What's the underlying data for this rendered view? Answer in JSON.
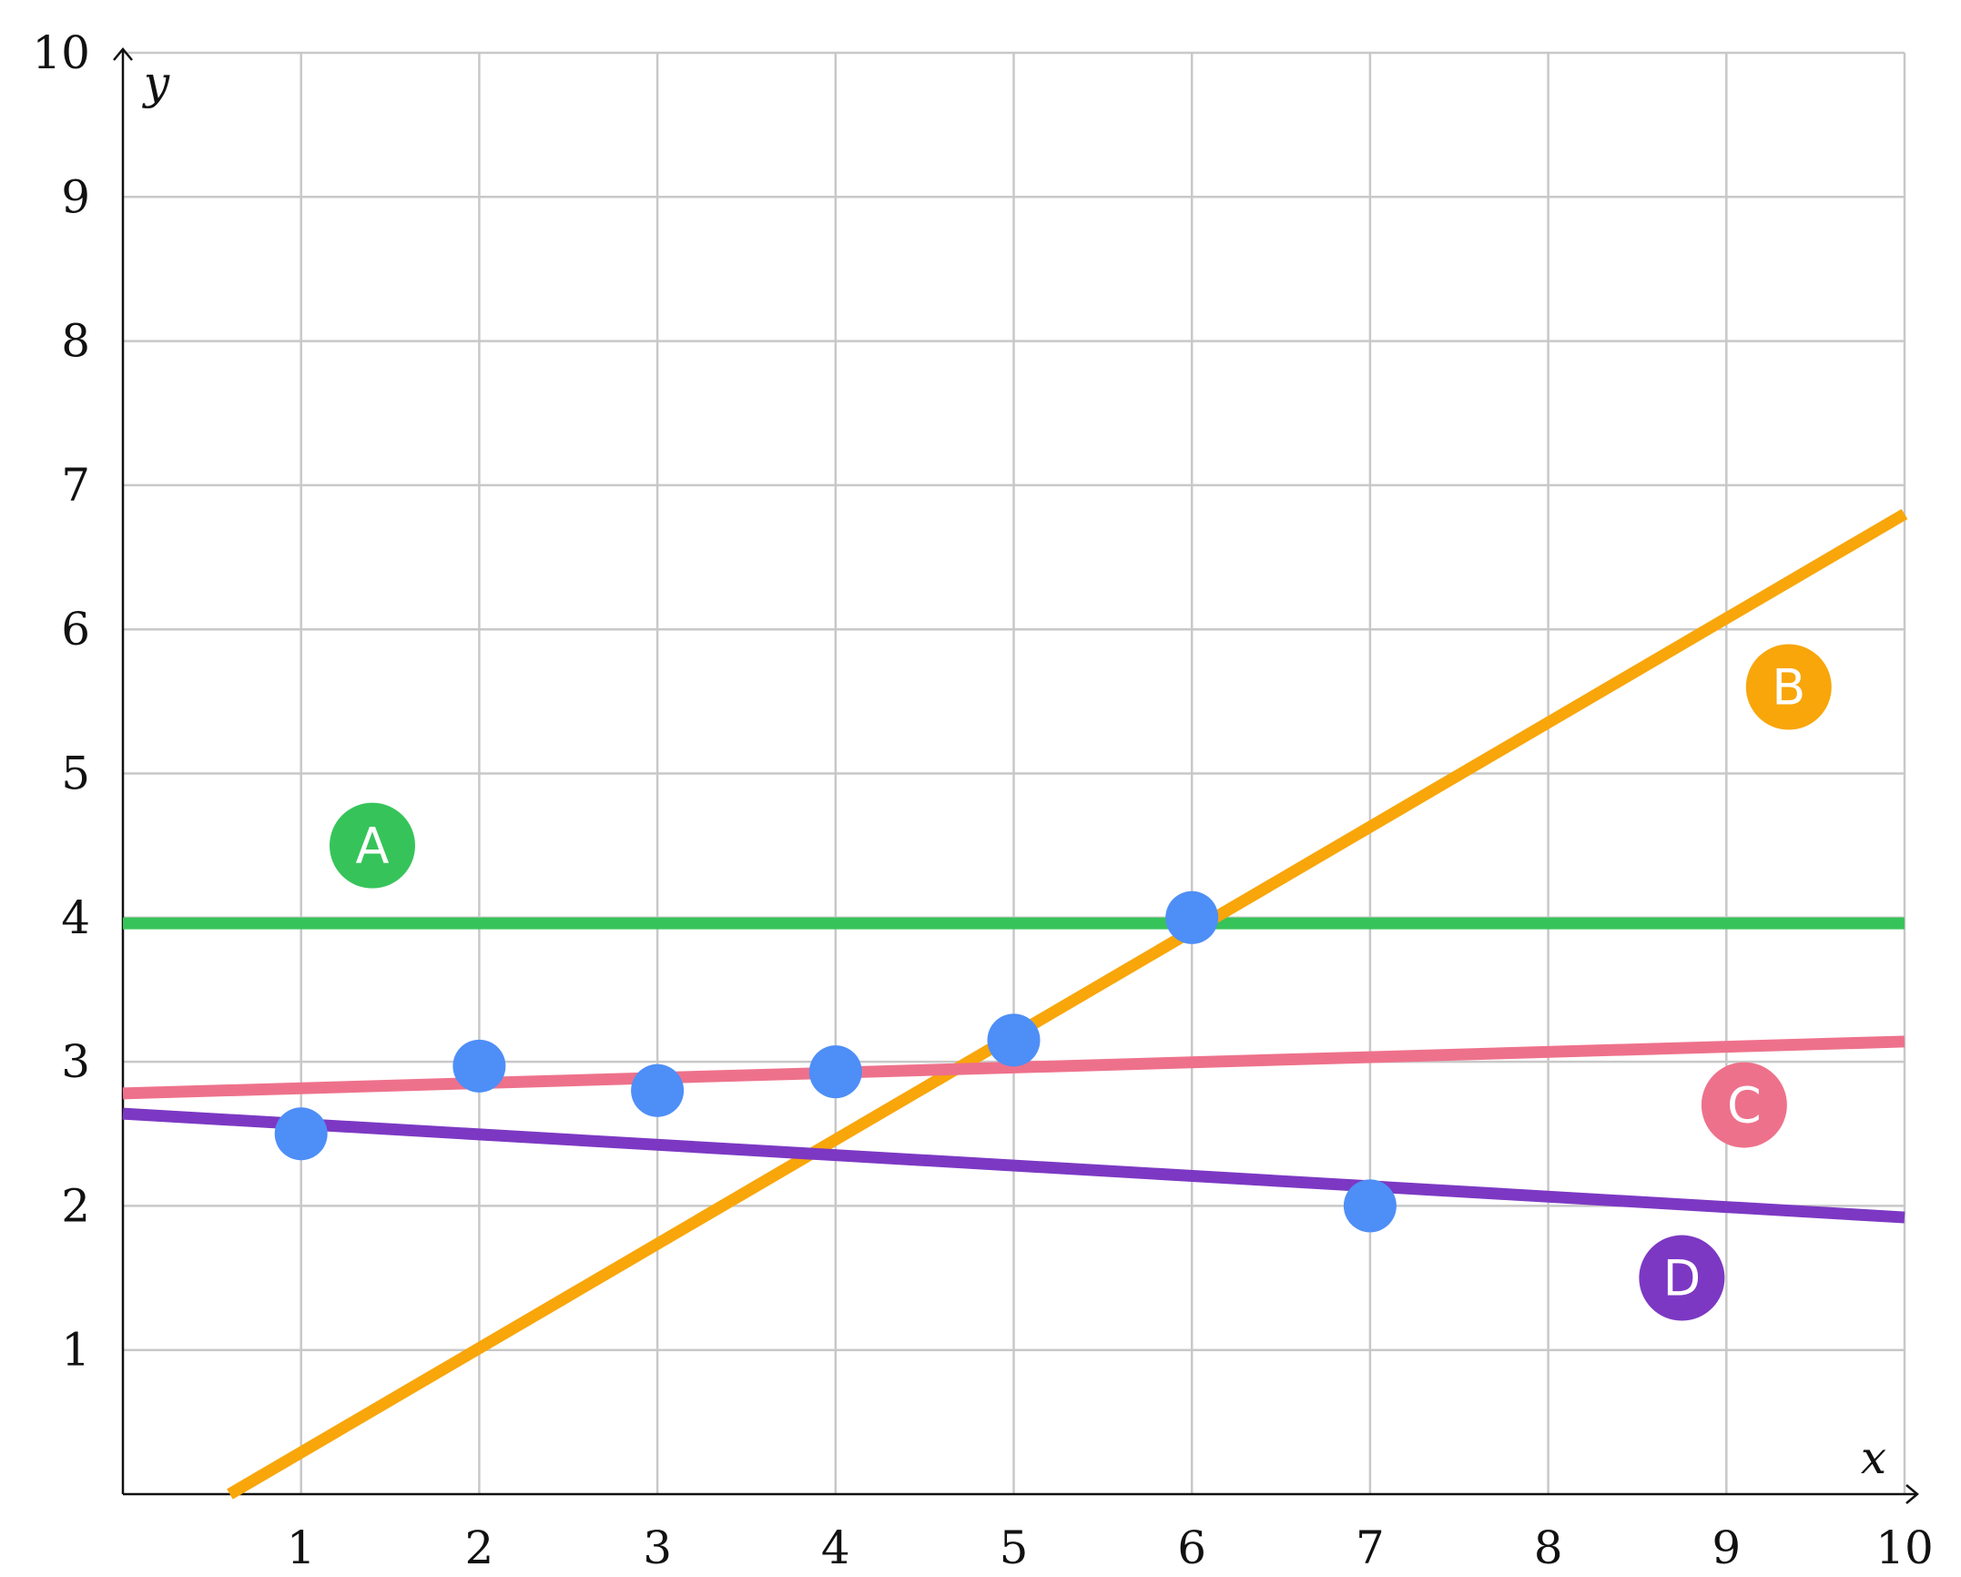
{
  "chart_data": {
    "type": "scatter",
    "title": "",
    "xlabel": "x",
    "ylabel": "y",
    "xlim": [
      0,
      10
    ],
    "ylim": [
      0,
      10
    ],
    "x_ticks": [
      1,
      2,
      3,
      4,
      5,
      6,
      7,
      8,
      9,
      10
    ],
    "y_ticks": [
      1,
      2,
      3,
      4,
      5,
      6,
      7,
      8,
      9,
      10
    ],
    "grid": true,
    "points": {
      "color": "#4e8ef7",
      "x": [
        1,
        2,
        3,
        4,
        5,
        6,
        7
      ],
      "y": [
        2.5,
        2.97,
        2.8,
        2.93,
        3.15,
        4.0,
        2.0
      ]
    },
    "lines": [
      {
        "label": "A",
        "color": "#36c45a",
        "x": [
          0,
          10
        ],
        "y": [
          3.96,
          3.96
        ],
        "label_pos": [
          1.4,
          4.5
        ]
      },
      {
        "label": "B",
        "color": "#f8a60a",
        "x": [
          0.6,
          10
        ],
        "y": [
          0.0,
          6.8
        ],
        "label_pos": [
          9.35,
          5.6
        ]
      },
      {
        "label": "C",
        "color": "#ee718b",
        "x": [
          0,
          10
        ],
        "y": [
          2.78,
          3.14
        ],
        "label_pos": [
          9.1,
          2.7
        ]
      },
      {
        "label": "D",
        "color": "#7c38c3",
        "x": [
          0,
          10
        ],
        "y": [
          2.64,
          1.92
        ],
        "label_pos": [
          8.75,
          1.5
        ]
      }
    ]
  }
}
